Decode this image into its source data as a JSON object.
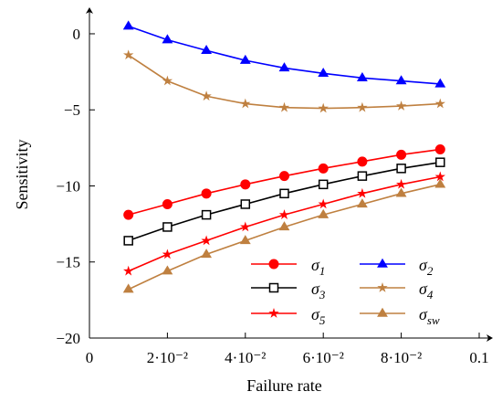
{
  "chart_data": {
    "type": "line",
    "xlabel": "Failure rate",
    "ylabel": "Sensitivity",
    "xlim": [
      0,
      0.1
    ],
    "ylim": [
      -20,
      1.5
    ],
    "x_ticks": [
      {
        "value": 0,
        "label": "0"
      },
      {
        "value": 0.02,
        "label": "2·10⁻²"
      },
      {
        "value": 0.04,
        "label": "4·10⁻²"
      },
      {
        "value": 0.06,
        "label": "6·10⁻²"
      },
      {
        "value": 0.08,
        "label": "8·10⁻²"
      },
      {
        "value": 0.1,
        "label": "0.1"
      }
    ],
    "y_ticks": [
      {
        "value": 0,
        "label": "0"
      },
      {
        "value": -5,
        "label": "−5"
      },
      {
        "value": -10,
        "label": "−10"
      },
      {
        "value": -15,
        "label": "−15"
      },
      {
        "value": -20,
        "label": "−20"
      }
    ],
    "grid": false,
    "legend_position": "bottom-right",
    "x": [
      0.01,
      0.02,
      0.03,
      0.04,
      0.05,
      0.06,
      0.07,
      0.08,
      0.09
    ],
    "series": [
      {
        "name": "σ1",
        "color": "#ff0000",
        "marker": "circle",
        "values": [
          -11.9,
          -11.2,
          -10.5,
          -9.9,
          -9.35,
          -8.85,
          -8.4,
          -7.95,
          -7.6
        ]
      },
      {
        "name": "σ2",
        "color": "#0000ff",
        "marker": "triangle",
        "values": [
          0.5,
          -0.4,
          -1.1,
          -1.75,
          -2.25,
          -2.6,
          -2.9,
          -3.1,
          -3.3
        ]
      },
      {
        "name": "σ3",
        "color": "#000000",
        "marker": "square-open",
        "values": [
          -13.6,
          -12.7,
          -11.9,
          -11.2,
          -10.5,
          -9.9,
          -9.35,
          -8.85,
          -8.45
        ]
      },
      {
        "name": "σ4",
        "color": "#bf8040",
        "marker": "star",
        "values": [
          -1.4,
          -3.1,
          -4.1,
          -4.6,
          -4.85,
          -4.9,
          -4.85,
          -4.75,
          -4.6
        ]
      },
      {
        "name": "σ5",
        "color": "#ff0000",
        "marker": "star",
        "values": [
          -15.6,
          -14.5,
          -13.6,
          -12.7,
          -11.9,
          -11.2,
          -10.5,
          -9.9,
          -9.4
        ]
      },
      {
        "name": "σsw",
        "color": "#bf8040",
        "marker": "triangle",
        "values": [
          -16.8,
          -15.6,
          -14.5,
          -13.6,
          -12.7,
          -11.9,
          -11.2,
          -10.5,
          -9.9
        ]
      }
    ],
    "legend": [
      {
        "symbol": "σ",
        "subscript": "1",
        "series": 0
      },
      {
        "symbol": "σ",
        "subscript": "2",
        "series": 1
      },
      {
        "symbol": "σ",
        "subscript": "3",
        "series": 2
      },
      {
        "symbol": "σ",
        "subscript": "4",
        "series": 3
      },
      {
        "symbol": "σ",
        "subscript": "5",
        "series": 4
      },
      {
        "symbol": "σ",
        "subscript": "sw",
        "series": 5
      }
    ]
  }
}
